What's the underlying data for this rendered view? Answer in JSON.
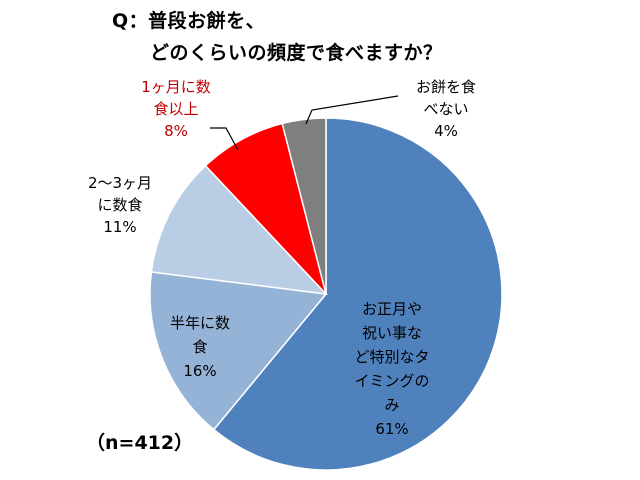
{
  "title": {
    "line1": "Q：普段お餅を、",
    "line2": "どのくらいの頻度で食べますか？"
  },
  "sample_size": "（n=412）",
  "chart_data": {
    "type": "pie",
    "title": "Q：普段お餅を、どのくらいの頻度で食べますか？",
    "categories": [
      "お正月や祝い事など特別なタイミングのみ",
      "半年に数食",
      "2〜3ヶ月に数食",
      "1ヶ月に数食以上",
      "お餅を食べない"
    ],
    "values": [
      61,
      16,
      11,
      8,
      4
    ],
    "unit": "%",
    "value_labels": [
      "61%",
      "16%",
      "11%",
      "8%",
      "4%"
    ],
    "label_lines": [
      [
        "お正月や",
        "祝い事な",
        "ど特別なタ",
        "イミングの",
        "み"
      ],
      [
        "半年に数",
        "食"
      ],
      [
        "2〜3ヶ月",
        "に数食"
      ],
      [
        "1ヶ月に数",
        "食以上"
      ],
      [
        "お餅を食",
        "べない"
      ]
    ],
    "colors": [
      "#4F81BD",
      "#95B3D7",
      "#B9CDE5",
      "#FF0000",
      "#7F7F7F"
    ],
    "label_colors": [
      "#000000",
      "#000000",
      "#000000",
      "#C00000",
      "#000000"
    ],
    "start": "12 o'clock",
    "direction": "clockwise",
    "legend": "none"
  }
}
